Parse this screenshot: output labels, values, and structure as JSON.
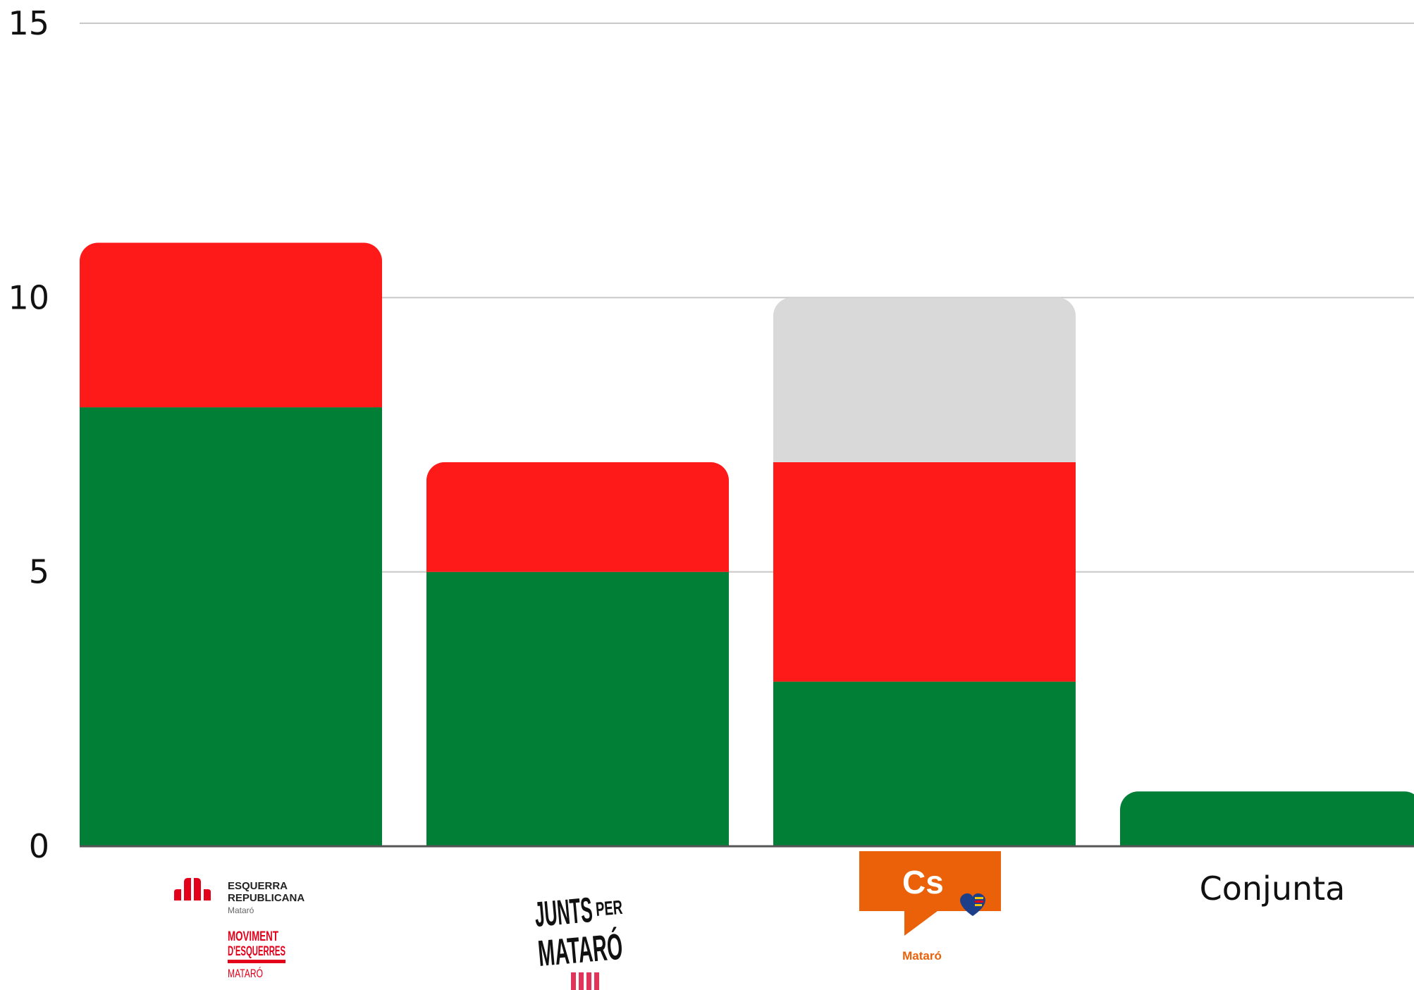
{
  "chart_data": {
    "type": "bar",
    "stacked": true,
    "categories": [
      "ESQUERRA REPUBLICANA",
      "JUNTS PER MATARÓ",
      "Cs",
      "Conjunta"
    ],
    "series": [
      {
        "color": "#027f37",
        "values": [
          8,
          5,
          3,
          1
        ]
      },
      {
        "color": "#ff1a1a",
        "values": [
          3,
          2,
          4,
          0
        ]
      },
      {
        "color": "#d9d9d9",
        "values": [
          0,
          0,
          3,
          0
        ]
      }
    ],
    "ylim": [
      0,
      15
    ],
    "yticks": [
      0,
      5,
      10,
      15
    ],
    "ytick_labels": [
      "0",
      "5",
      "10",
      "15"
    ],
    "grid": true,
    "legend": "none"
  },
  "logos": {
    "erc": {
      "line1": "ESQUERRA",
      "line2": "REPUBLICANA",
      "city": "Mataró",
      "sub1": "MOVIMENT",
      "sub2": "D'ESQUERRES",
      "sub3": "MATARÓ",
      "color": "#e3001b"
    },
    "junts": {
      "word1": "JUNTS",
      "word2": "PER",
      "word3": "MATARÓ",
      "stripe_color": "#e2335a"
    },
    "cs": {
      "mark": "Cs",
      "city": "Mataró",
      "color": "#eb6109"
    },
    "conjunta": {
      "label": "Conjunta"
    }
  },
  "colors": {
    "grid": "#c8c8c8",
    "axis": "#555555"
  }
}
